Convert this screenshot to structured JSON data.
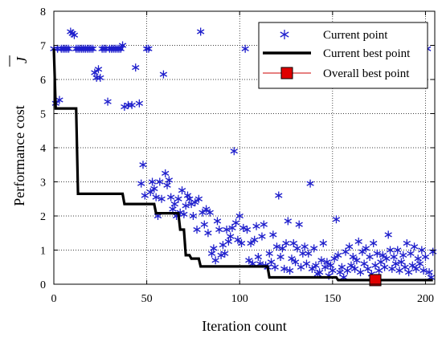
{
  "chart_data": {
    "type": "scatter",
    "xlabel": "Iteration count",
    "ylabel": "Performance cost",
    "ylabel_symbol": "J",
    "xlim": [
      0,
      205
    ],
    "ylim": [
      0,
      8
    ],
    "x_ticks": [
      0,
      50,
      100,
      150,
      200
    ],
    "y_ticks": [
      0,
      1,
      2,
      3,
      4,
      5,
      6,
      7,
      8
    ],
    "grid": "dotted vertical and horizontal at major ticks",
    "legend": {
      "placement": "top-right",
      "entries": [
        "Current point",
        "Current best point",
        "Overall best point"
      ]
    },
    "colors": {
      "current_point": "#1f1fcc",
      "current_best": "#000000",
      "overall_best_fill": "#e00000",
      "overall_best_line": "#cc0000"
    },
    "series": [
      {
        "name": "Current point",
        "marker": "asterisk",
        "points": [
          [
            0,
            6.9
          ],
          [
            1,
            5.3
          ],
          [
            2,
            6.9
          ],
          [
            3,
            5.4
          ],
          [
            4,
            6.9
          ],
          [
            5,
            6.9
          ],
          [
            6,
            6.9
          ],
          [
            7,
            6.9
          ],
          [
            8,
            6.9
          ],
          [
            9,
            7.4
          ],
          [
            10,
            7.35
          ],
          [
            11,
            7.3
          ],
          [
            12,
            6.9
          ],
          [
            13,
            6.9
          ],
          [
            14,
            6.9
          ],
          [
            15,
            6.9
          ],
          [
            16,
            6.9
          ],
          [
            17,
            6.9
          ],
          [
            18,
            6.9
          ],
          [
            19,
            6.9
          ],
          [
            20,
            6.9
          ],
          [
            21,
            6.9
          ],
          [
            22,
            6.2
          ],
          [
            23,
            6.05
          ],
          [
            24,
            6.3
          ],
          [
            25,
            6.05
          ],
          [
            26,
            6.9
          ],
          [
            27,
            6.9
          ],
          [
            28,
            6.9
          ],
          [
            29,
            5.35
          ],
          [
            30,
            6.9
          ],
          [
            31,
            6.9
          ],
          [
            32,
            6.9
          ],
          [
            33,
            6.9
          ],
          [
            34,
            6.9
          ],
          [
            35,
            6.9
          ],
          [
            36,
            6.9
          ],
          [
            37,
            7.0
          ],
          [
            38,
            5.2
          ],
          [
            40,
            5.25
          ],
          [
            42,
            5.25
          ],
          [
            44,
            6.35
          ],
          [
            46,
            5.3
          ],
          [
            47,
            2.95
          ],
          [
            48,
            3.5
          ],
          [
            49,
            2.6
          ],
          [
            50,
            6.9
          ],
          [
            51,
            6.9
          ],
          [
            52,
            2.7
          ],
          [
            53,
            3.0
          ],
          [
            54,
            2.8
          ],
          [
            55,
            2.55
          ],
          [
            56,
            2.0
          ],
          [
            57,
            3.0
          ],
          [
            58,
            2.5
          ],
          [
            59,
            6.15
          ],
          [
            60,
            3.25
          ],
          [
            61,
            2.9
          ],
          [
            62,
            3.05
          ],
          [
            63,
            2.55
          ],
          [
            64,
            2.2
          ],
          [
            65,
            2.35
          ],
          [
            66,
            2.0
          ],
          [
            67,
            2.5
          ],
          [
            68,
            2.1
          ],
          [
            69,
            2.75
          ],
          [
            70,
            2.05
          ],
          [
            71,
            2.3
          ],
          [
            72,
            2.6
          ],
          [
            73,
            2.5
          ],
          [
            74,
            2.35
          ],
          [
            75,
            2.0
          ],
          [
            76,
            2.4
          ],
          [
            77,
            1.6
          ],
          [
            78,
            2.5
          ],
          [
            79,
            7.4
          ],
          [
            80,
            2.1
          ],
          [
            81,
            1.75
          ],
          [
            82,
            2.2
          ],
          [
            83,
            1.5
          ],
          [
            84,
            2.1
          ],
          [
            85,
            0.9
          ],
          [
            86,
            1.05
          ],
          [
            87,
            0.7
          ],
          [
            88,
            1.85
          ],
          [
            89,
            1.6
          ],
          [
            90,
            0.85
          ],
          [
            91,
            1.15
          ],
          [
            92,
            0.9
          ],
          [
            93,
            1.6
          ],
          [
            94,
            1.25
          ],
          [
            95,
            1.4
          ],
          [
            96,
            1.65
          ],
          [
            97,
            3.9
          ],
          [
            98,
            1.8
          ],
          [
            99,
            1.3
          ],
          [
            100,
            2.0
          ],
          [
            101,
            1.2
          ],
          [
            102,
            1.65
          ],
          [
            103,
            6.9
          ],
          [
            104,
            1.6
          ],
          [
            105,
            0.7
          ],
          [
            106,
            1.2
          ],
          [
            107,
            0.6
          ],
          [
            108,
            1.3
          ],
          [
            109,
            1.7
          ],
          [
            110,
            0.8
          ],
          [
            111,
            0.6
          ],
          [
            112,
            1.4
          ],
          [
            113,
            1.75
          ],
          [
            114,
            0.55
          ],
          [
            115,
            0.5
          ],
          [
            116,
            0.9
          ],
          [
            117,
            0.65
          ],
          [
            118,
            1.45
          ],
          [
            119,
            0.5
          ],
          [
            120,
            1.1
          ],
          [
            121,
            2.6
          ],
          [
            122,
            0.8
          ],
          [
            123,
            1.05
          ],
          [
            124,
            0.45
          ],
          [
            125,
            1.2
          ],
          [
            126,
            1.85
          ],
          [
            127,
            0.4
          ],
          [
            128,
            0.75
          ],
          [
            129,
            1.2
          ],
          [
            130,
            0.65
          ],
          [
            131,
            1.05
          ],
          [
            132,
            1.75
          ],
          [
            133,
            0.5
          ],
          [
            134,
            0.9
          ],
          [
            135,
            1.1
          ],
          [
            136,
            0.6
          ],
          [
            137,
            0.9
          ],
          [
            138,
            2.95
          ],
          [
            139,
            0.45
          ],
          [
            140,
            1.05
          ],
          [
            141,
            0.55
          ],
          [
            142,
            0.3
          ],
          [
            143,
            0.35
          ],
          [
            144,
            0.7
          ],
          [
            145,
            1.2
          ],
          [
            146,
            0.5
          ],
          [
            147,
            0.65
          ],
          [
            148,
            0.25
          ],
          [
            149,
            0.55
          ],
          [
            150,
            0.4
          ],
          [
            151,
            0.75
          ],
          [
            152,
            1.9
          ],
          [
            153,
            0.85
          ],
          [
            154,
            0.35
          ],
          [
            155,
            0.5
          ],
          [
            156,
            0.2
          ],
          [
            157,
            0.95
          ],
          [
            158,
            0.4
          ],
          [
            159,
            1.1
          ],
          [
            160,
            0.55
          ],
          [
            161,
            0.8
          ],
          [
            162,
            0.45
          ],
          [
            163,
            0.7
          ],
          [
            164,
            1.25
          ],
          [
            165,
            0.35
          ],
          [
            166,
            0.95
          ],
          [
            167,
            0.6
          ],
          [
            168,
            1.05
          ],
          [
            169,
            0.45
          ],
          [
            170,
            0.8
          ],
          [
            171,
            0.3
          ],
          [
            172,
            1.2
          ],
          [
            173,
            0.55
          ],
          [
            174,
            0.9
          ],
          [
            175,
            0.4
          ],
          [
            176,
            0.65
          ],
          [
            177,
            0.85
          ],
          [
            178,
            0.5
          ],
          [
            179,
            0.75
          ],
          [
            180,
            1.45
          ],
          [
            181,
            1.0
          ],
          [
            182,
            0.45
          ],
          [
            183,
            0.8
          ],
          [
            184,
            0.6
          ],
          [
            185,
            1.0
          ],
          [
            186,
            0.4
          ],
          [
            187,
            0.65
          ],
          [
            188,
            0.85
          ],
          [
            189,
            0.5
          ],
          [
            190,
            1.2
          ],
          [
            191,
            0.35
          ],
          [
            192,
            0.9
          ],
          [
            193,
            0.55
          ],
          [
            194,
            1.1
          ],
          [
            195,
            0.45
          ],
          [
            196,
            0.75
          ],
          [
            197,
            0.6
          ],
          [
            198,
            1.0
          ],
          [
            199,
            0.4
          ],
          [
            200,
            0.8
          ],
          [
            201,
            6.9
          ],
          [
            202,
            0.35
          ],
          [
            203,
            0.2
          ],
          [
            204,
            0.95
          ]
        ]
      },
      {
        "name": "Current best point",
        "line": "step",
        "points": [
          [
            0,
            6.9
          ],
          [
            1,
            5.15
          ],
          [
            12,
            5.15
          ],
          [
            13,
            2.65
          ],
          [
            37,
            2.65
          ],
          [
            38,
            2.35
          ],
          [
            54,
            2.35
          ],
          [
            55,
            2.08
          ],
          [
            67,
            2.08
          ],
          [
            68,
            1.6
          ],
          [
            70,
            1.6
          ],
          [
            71,
            0.85
          ],
          [
            73,
            0.85
          ],
          [
            74,
            0.75
          ],
          [
            78,
            0.75
          ],
          [
            79,
            0.52
          ],
          [
            115,
            0.52
          ],
          [
            116,
            0.2
          ],
          [
            152,
            0.2
          ],
          [
            153,
            0.12
          ],
          [
            204,
            0.12
          ]
        ]
      },
      {
        "name": "Overall best point",
        "marker": "square",
        "points": [
          [
            173,
            0.12
          ]
        ]
      }
    ]
  }
}
